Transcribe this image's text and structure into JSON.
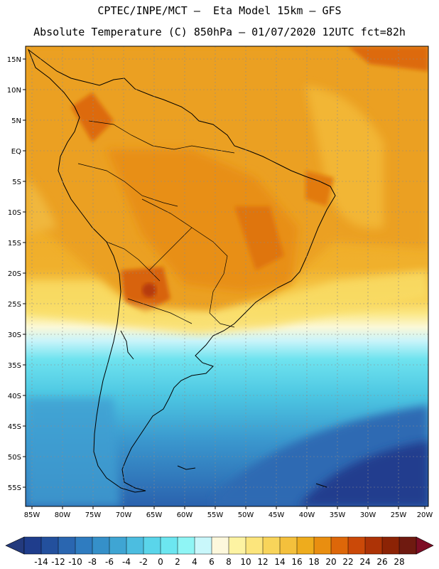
{
  "header": {
    "line1": "CPTEC/INPE/MCT –  Eta Model 15km – GFS",
    "line2": "Absolute Temperature (C) 850hPa – 01/07/2020 12UTC fct=82h"
  },
  "map": {
    "lat_labels": [
      "15N",
      "10N",
      "5N",
      "EQ",
      "5S",
      "10S",
      "15S",
      "20S",
      "25S",
      "30S",
      "35S",
      "40S",
      "45S",
      "50S",
      "55S"
    ],
    "lon_labels": [
      "85W",
      "80W",
      "75W",
      "70W",
      "65W",
      "60W",
      "55W",
      "50W",
      "45W",
      "40W",
      "35W",
      "30W",
      "25W",
      "20W"
    ]
  },
  "colorbar": {
    "labels": [
      "-14",
      "-12",
      "-10",
      "-8",
      "-6",
      "-4",
      "-2",
      "0",
      "2",
      "4",
      "6",
      "8",
      "10",
      "12",
      "14",
      "16",
      "18",
      "20",
      "22",
      "24",
      "26",
      "28"
    ],
    "colors": [
      "#1f3d8c",
      "#23509d",
      "#2a66b0",
      "#2f7cc0",
      "#3590c9",
      "#3fa5d3",
      "#4cbde0",
      "#5ad5ea",
      "#6ce6f0",
      "#8ff5f5",
      "#c9f7fb",
      "#fdf8dc",
      "#fdf3a2",
      "#fce57c",
      "#f8d45a",
      "#f4c03c",
      "#eeac1d",
      "#e98e10",
      "#dd6709",
      "#cb4908",
      "#ad3306",
      "#8c2305",
      "#6f1a10"
    ],
    "under_color": "#233a7d",
    "over_color": "#7d0d25"
  }
}
